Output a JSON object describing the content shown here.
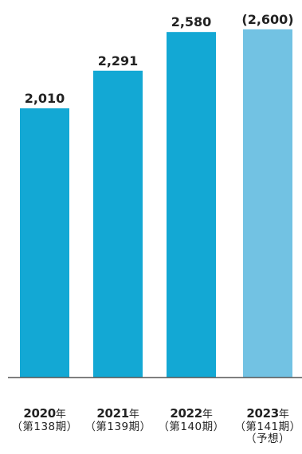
{
  "chart_data": {
    "type": "bar",
    "categories": [
      "2020",
      "2021",
      "2022",
      "2023"
    ],
    "values": [
      2010,
      2291,
      2580,
      2600
    ],
    "value_labels": [
      "2,010",
      "2,291",
      "2,580",
      "(2,600)"
    ],
    "ylim": [
      0,
      2700
    ],
    "grid": false,
    "x_labels": [
      {
        "year": "2020",
        "unit": "年",
        "term": "（第138期）",
        "note": ""
      },
      {
        "year": "2021",
        "unit": "年",
        "term": "（第139期）",
        "note": ""
      },
      {
        "year": "2022",
        "unit": "年",
        "term": "（第140期）",
        "note": ""
      },
      {
        "year": "2023",
        "unit": "年",
        "term": "（第141期）",
        "note": "（予想）"
      }
    ]
  },
  "colors": {
    "actual": "#13a8d4",
    "forecast": "#72c2e3",
    "baseline": "#555555",
    "label": "#222222"
  }
}
